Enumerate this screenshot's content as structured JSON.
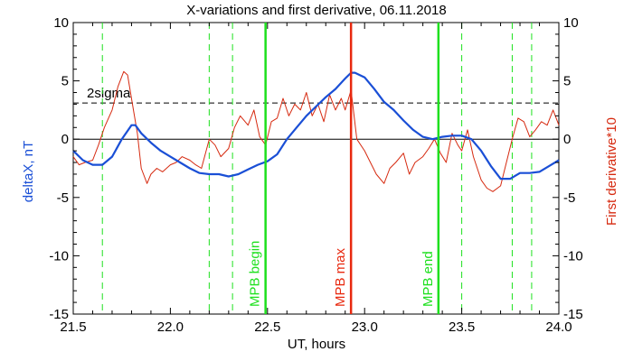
{
  "chart_data": {
    "type": "line",
    "title": "X-variations and first derivative, 06.11.2018",
    "xlabel": "UT, hours",
    "ylabel_left": "deltaX, nT",
    "ylabel_right": "First derivative*10",
    "xlim": [
      21.5,
      24.0
    ],
    "ylim": [
      -15,
      10
    ],
    "xticks": [
      "21.5",
      "22.0",
      "22.5",
      "23.0",
      "23.5",
      "24.0"
    ],
    "yticks": [
      "-15",
      "-10",
      "-5",
      "0",
      "5",
      "10"
    ],
    "colors": {
      "deltaX": "#1a4fd6",
      "derivative": "#d62a10",
      "mpb_edges": "#1ee01e",
      "mpb_max": "#e8290f",
      "dashed_lines": "#1ee01e",
      "sigma_line": "#000000"
    },
    "sigma": {
      "label": "2sigma",
      "value": 3.1
    },
    "zero_line": 0,
    "series": [
      {
        "key": "deltaX",
        "x": [
          21.5,
          21.55,
          21.6,
          21.65,
          21.7,
          21.75,
          21.8,
          21.82,
          21.85,
          21.9,
          21.95,
          22.0,
          22.05,
          22.1,
          22.15,
          22.2,
          22.25,
          22.3,
          22.35,
          22.4,
          22.45,
          22.5,
          22.55,
          22.6,
          22.65,
          22.7,
          22.75,
          22.8,
          22.85,
          22.9,
          22.93,
          22.95,
          23.0,
          23.05,
          23.1,
          23.15,
          23.2,
          23.25,
          23.3,
          23.35,
          23.4,
          23.45,
          23.5,
          23.55,
          23.6,
          23.65,
          23.7,
          23.75,
          23.8,
          23.85,
          23.9,
          23.95,
          24.0
        ],
        "y": [
          -1.0,
          -1.8,
          -2.2,
          -2.2,
          -1.5,
          0.0,
          1.2,
          1.2,
          0.5,
          -0.3,
          -1.0,
          -1.5,
          -2.0,
          -2.5,
          -2.9,
          -3.0,
          -3.0,
          -3.2,
          -3.0,
          -2.6,
          -2.2,
          -1.9,
          -1.3,
          0.0,
          1.0,
          2.0,
          2.8,
          3.6,
          4.3,
          5.2,
          5.7,
          5.7,
          5.3,
          4.3,
          3.2,
          2.5,
          1.6,
          0.8,
          0.2,
          0.0,
          0.2,
          0.3,
          0.3,
          0.0,
          -1.0,
          -2.3,
          -3.4,
          -3.4,
          -2.9,
          -2.9,
          -2.8,
          -2.3,
          -1.8
        ]
      },
      {
        "key": "derivative",
        "x": [
          21.5,
          21.53,
          21.56,
          21.6,
          21.63,
          21.66,
          21.7,
          21.73,
          21.76,
          21.78,
          21.8,
          21.83,
          21.85,
          21.88,
          21.9,
          21.93,
          21.96,
          22.0,
          22.03,
          22.06,
          22.1,
          22.13,
          22.16,
          22.2,
          22.23,
          22.26,
          22.3,
          22.33,
          22.36,
          22.4,
          22.43,
          22.46,
          22.49,
          22.52,
          22.55,
          22.58,
          22.61,
          22.64,
          22.67,
          22.7,
          22.73,
          22.76,
          22.79,
          22.82,
          22.85,
          22.88,
          22.9,
          22.93,
          22.96,
          23.0,
          23.03,
          23.06,
          23.1,
          23.13,
          23.16,
          23.2,
          23.23,
          23.26,
          23.3,
          23.33,
          23.36,
          23.39,
          23.42,
          23.45,
          23.48,
          23.5,
          23.53,
          23.56,
          23.6,
          23.63,
          23.66,
          23.7,
          23.73,
          23.76,
          23.79,
          23.82,
          23.85,
          23.88,
          23.91,
          23.94,
          23.97,
          24.0
        ],
        "y": [
          -1.5,
          -2.2,
          -2.0,
          -1.8,
          -0.5,
          1.0,
          2.5,
          4.5,
          5.8,
          5.5,
          3.5,
          0.5,
          -2.5,
          -3.8,
          -3.0,
          -2.5,
          -2.8,
          -2.2,
          -2.0,
          -1.5,
          -1.8,
          -2.2,
          -2.5,
          0.0,
          -0.5,
          -1.5,
          -0.8,
          1.0,
          2.0,
          1.2,
          2.5,
          0.2,
          -0.5,
          1.5,
          1.8,
          3.5,
          2.0,
          3.0,
          2.5,
          4.0,
          2.0,
          3.0,
          1.5,
          3.8,
          2.5,
          3.5,
          2.5,
          4.2,
          0.0,
          -1.0,
          -2.0,
          -3.0,
          -3.8,
          -2.5,
          -2.0,
          -1.2,
          -3.0,
          -2.0,
          -1.5,
          -0.8,
          0.0,
          -1.2,
          -2.0,
          0.5,
          -0.5,
          -1.0,
          0.8,
          -1.5,
          -3.5,
          -4.2,
          -4.5,
          -4.0,
          -2.0,
          0.0,
          1.8,
          1.5,
          0.2,
          0.8,
          1.5,
          1.2,
          2.5,
          1.2
        ]
      }
    ],
    "vertical_lines": {
      "dashed": [
        21.65,
        22.2,
        22.32,
        23.5,
        23.76,
        23.86
      ],
      "solid": [
        {
          "x": 22.49,
          "label": "MPB begin",
          "kind": "edge"
        },
        {
          "x": 22.93,
          "label": "MPB max",
          "kind": "max"
        },
        {
          "x": 23.38,
          "label": "MPB end",
          "kind": "edge"
        }
      ]
    }
  }
}
